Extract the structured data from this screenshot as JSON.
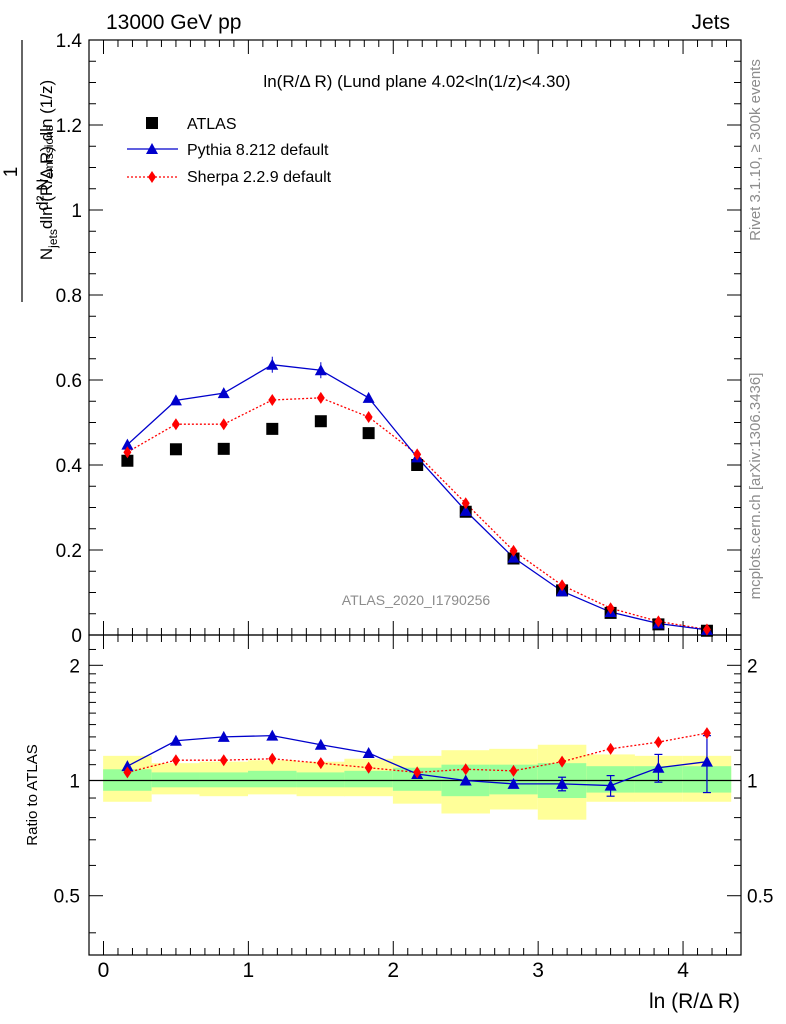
{
  "header": {
    "left": "13000 GeV pp",
    "right": "Jets"
  },
  "side_labels": {
    "rivet": "Rivet 3.1.10, ≥ 300k events",
    "mcplots": "mcplots.cern.ch [arXiv:1306.3436]"
  },
  "watermark": "ATLAS_2020_I1790256",
  "chart_data": {
    "type": "scatter",
    "title": "ln(R/Δ R) (Lund plane 4.02<ln(1/z)<4.30)",
    "xlabel": "ln (R/Δ R)",
    "ylabel": "1/N_jets dN_emissions / dln(R/Δ R) dln(1/z)",
    "xlim": [
      -0.1,
      4.4
    ],
    "ylim": [
      0,
      1.4
    ],
    "legend_position": "top-left",
    "x_ticks": [
      "0",
      "1",
      "2",
      "3",
      "4"
    ],
    "y_ticks": [
      "0",
      "0.2",
      "0.4",
      "0.6",
      "0.8",
      "1",
      "1.2",
      "1.4"
    ],
    "x": [
      0.165,
      0.5,
      0.83,
      1.165,
      1.5,
      1.83,
      2.165,
      2.5,
      2.83,
      3.165,
      3.5,
      3.83,
      4.165
    ],
    "series": [
      {
        "name": "ATLAS",
        "color": "#000000",
        "marker": "square",
        "values": [
          0.41,
          0.437,
          0.438,
          0.485,
          0.503,
          0.475,
          0.4,
          0.29,
          0.18,
          0.105,
          0.052,
          0.025,
          0.01
        ]
      },
      {
        "name": "Pythia 8.212 default",
        "color": "#0000cc",
        "marker": "triangle",
        "values": [
          0.448,
          0.552,
          0.569,
          0.636,
          0.623,
          0.558,
          0.418,
          0.292,
          0.182,
          0.103,
          0.054,
          0.027,
          0.012
        ]
      },
      {
        "name": "Sherpa 2.2.9 default",
        "color": "#ff0000",
        "marker": "diamond",
        "values": [
          0.43,
          0.496,
          0.496,
          0.553,
          0.558,
          0.513,
          0.425,
          0.31,
          0.198,
          0.117,
          0.063,
          0.032,
          0.013
        ]
      }
    ],
    "ratio": {
      "ylabel": "Ratio to ATLAS",
      "ylim": [
        0.35,
        2.4
      ],
      "log": true,
      "y_ticks": [
        "0.5",
        "1",
        "2"
      ],
      "pythia": [
        1.09,
        1.27,
        1.3,
        1.31,
        1.24,
        1.18,
        1.04,
        1.0,
        0.98,
        0.98,
        0.97,
        1.08,
        1.12
      ],
      "pythia_err": [
        0,
        0,
        0,
        0,
        0,
        0,
        0,
        0,
        0.02,
        0.04,
        0.06,
        0.09,
        0.19
      ],
      "sherpa": [
        1.05,
        1.13,
        1.13,
        1.14,
        1.11,
        1.08,
        1.05,
        1.07,
        1.06,
        1.12,
        1.21,
        1.26,
        1.33
      ],
      "band_inner": [
        [
          0.94,
          1.07
        ],
        [
          0.96,
          1.05
        ],
        [
          0.96,
          1.05
        ],
        [
          0.96,
          1.06
        ],
        [
          0.96,
          1.05
        ],
        [
          0.96,
          1.06
        ],
        [
          0.94,
          1.08
        ],
        [
          0.91,
          1.1
        ],
        [
          0.92,
          1.1
        ],
        [
          0.9,
          1.11
        ],
        [
          0.93,
          1.09
        ],
        [
          0.93,
          1.09
        ],
        [
          0.93,
          1.09
        ]
      ],
      "band_outer": [
        [
          0.88,
          1.16
        ],
        [
          0.92,
          1.11
        ],
        [
          0.91,
          1.12
        ],
        [
          0.92,
          1.13
        ],
        [
          0.91,
          1.12
        ],
        [
          0.91,
          1.14
        ],
        [
          0.87,
          1.16
        ],
        [
          0.82,
          1.2
        ],
        [
          0.84,
          1.21
        ],
        [
          0.79,
          1.24
        ],
        [
          0.88,
          1.17
        ],
        [
          0.88,
          1.16
        ],
        [
          0.88,
          1.16
        ]
      ]
    }
  }
}
